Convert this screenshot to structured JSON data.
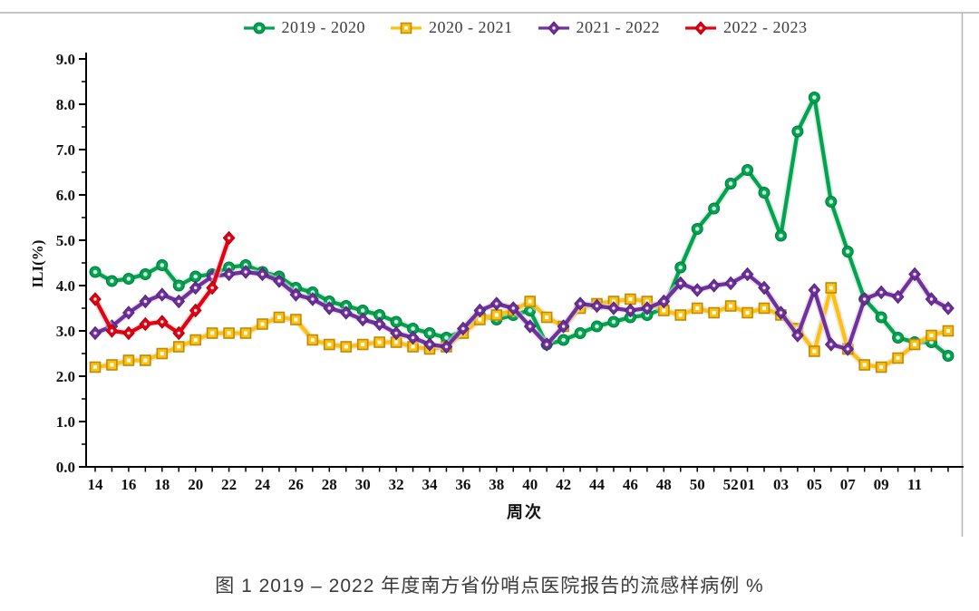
{
  "figure": {
    "caption": "图 1  2019 – 2022 年度南方省份哨点医院报告的流感样病例 %"
  },
  "chart_data": {
    "type": "line",
    "title": "",
    "xlabel": "周次",
    "ylabel": "ILI(%)",
    "ylim": [
      0.0,
      9.0
    ],
    "ytick_step": 1.0,
    "ytick_labels": [
      "0.0",
      "1.0",
      "2.0",
      "3.0",
      "4.0",
      "5.0",
      "6.0",
      "7.0",
      "8.0",
      "9.0"
    ],
    "grid": false,
    "legend_position": "top-center",
    "x_axis_note": "weeks 14-52 of first year followed by weeks 01-13 of next year",
    "categories": [
      "14",
      "15",
      "16",
      "17",
      "18",
      "19",
      "20",
      "21",
      "22",
      "23",
      "24",
      "25",
      "26",
      "27",
      "28",
      "29",
      "30",
      "31",
      "32",
      "33",
      "34",
      "35",
      "36",
      "37",
      "38",
      "39",
      "40",
      "41",
      "42",
      "43",
      "44",
      "45",
      "46",
      "47",
      "48",
      "49",
      "50",
      "51",
      "52",
      "01",
      "02",
      "03",
      "04",
      "05",
      "06",
      "07",
      "08",
      "09",
      "10",
      "11",
      "12",
      "13"
    ],
    "x_tick_labels": [
      "14",
      "16",
      "18",
      "20",
      "22",
      "24",
      "26",
      "28",
      "30",
      "32",
      "34",
      "36",
      "38",
      "40",
      "42",
      "44",
      "46",
      "48",
      "50",
      "52",
      "01",
      "03",
      "05",
      "07",
      "09",
      "11"
    ],
    "series": [
      {
        "name": "2019 - 2020",
        "color": "#00A550",
        "marker": "circle",
        "values": [
          4.3,
          4.1,
          4.15,
          4.25,
          4.45,
          4.0,
          4.2,
          4.25,
          4.4,
          4.45,
          4.3,
          4.2,
          3.95,
          3.85,
          3.65,
          3.55,
          3.45,
          3.35,
          3.2,
          3.05,
          2.95,
          2.85,
          3.0,
          3.35,
          3.25,
          3.35,
          3.45,
          2.7,
          2.8,
          2.95,
          3.1,
          3.2,
          3.3,
          3.35,
          3.5,
          4.4,
          5.25,
          5.7,
          6.25,
          6.55,
          6.05,
          5.1,
          7.4,
          8.15,
          5.85,
          4.75,
          3.7,
          3.3,
          2.85,
          2.75,
          2.75,
          2.45
        ]
      },
      {
        "name": "2020 - 2021",
        "color": "#FFC10E",
        "marker": "square",
        "values": [
          2.2,
          2.25,
          2.35,
          2.35,
          2.5,
          2.65,
          2.8,
          2.95,
          2.95,
          2.95,
          3.15,
          3.3,
          3.25,
          2.8,
          2.7,
          2.65,
          2.7,
          2.75,
          2.75,
          2.65,
          2.6,
          2.65,
          2.95,
          3.25,
          3.35,
          3.45,
          3.65,
          3.3,
          3.1,
          3.5,
          3.6,
          3.65,
          3.7,
          3.65,
          3.45,
          3.35,
          3.5,
          3.4,
          3.55,
          3.4,
          3.5,
          3.35,
          3.05,
          2.55,
          3.95,
          2.6,
          2.25,
          2.2,
          2.4,
          2.7,
          2.9,
          3.0
        ]
      },
      {
        "name": "2021 - 2022",
        "color": "#7030A0",
        "marker": "diamond",
        "values": [
          2.95,
          3.1,
          3.4,
          3.65,
          3.8,
          3.65,
          3.95,
          4.2,
          4.25,
          4.3,
          4.25,
          4.1,
          3.8,
          3.7,
          3.5,
          3.4,
          3.25,
          3.15,
          2.95,
          2.85,
          2.7,
          2.65,
          3.05,
          3.45,
          3.6,
          3.5,
          3.1,
          2.7,
          3.1,
          3.6,
          3.55,
          3.5,
          3.45,
          3.5,
          3.65,
          4.05,
          3.9,
          4.0,
          4.05,
          4.25,
          3.95,
          3.4,
          2.9,
          3.9,
          2.7,
          2.6,
          3.7,
          3.85,
          3.75,
          4.25,
          3.7,
          3.5
        ]
      },
      {
        "name": "2022 - 2023",
        "color": "#E60012",
        "marker": "diamond",
        "values": [
          3.7,
          3.0,
          2.95,
          3.15,
          3.2,
          2.95,
          3.45,
          3.95,
          5.05,
          null,
          null,
          null,
          null,
          null,
          null,
          null,
          null,
          null,
          null,
          null,
          null,
          null,
          null,
          null,
          null,
          null,
          null,
          null,
          null,
          null,
          null,
          null,
          null,
          null,
          null,
          null,
          null,
          null,
          null,
          null,
          null,
          null,
          null,
          null,
          null,
          null,
          null,
          null,
          null,
          null,
          null,
          null
        ]
      }
    ]
  }
}
